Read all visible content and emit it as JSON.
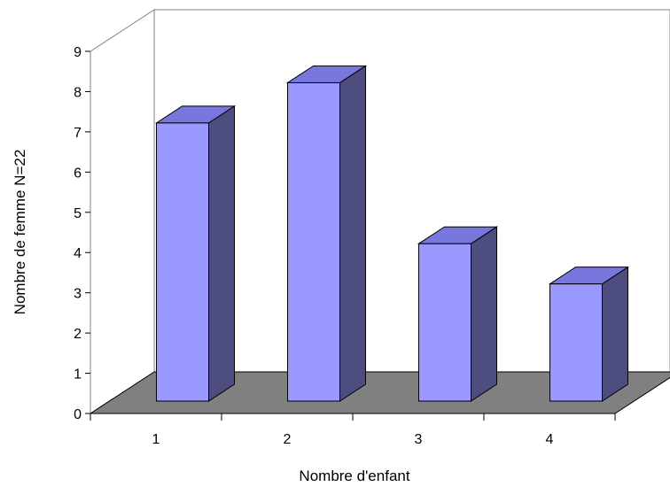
{
  "chart_data": {
    "type": "bar",
    "categories": [
      "1",
      "2",
      "3",
      "4"
    ],
    "values": [
      7,
      8,
      4,
      3
    ],
    "xlabel": "Nombre d'enfant",
    "ylabel": "Nombre de femme N=22",
    "ylim": [
      0,
      9
    ],
    "yticks": [
      0,
      1,
      2,
      3,
      4,
      5,
      6,
      7,
      8,
      9
    ],
    "grid": false,
    "legend": "none",
    "style": "3d",
    "colors": {
      "bar_front": "#9999FF",
      "bar_top": "#7777DD",
      "bar_side": "#4D4D80",
      "floor": "#808080",
      "walls": "#ffffff",
      "wall_edge": "#808080",
      "outline": "#000000"
    }
  }
}
